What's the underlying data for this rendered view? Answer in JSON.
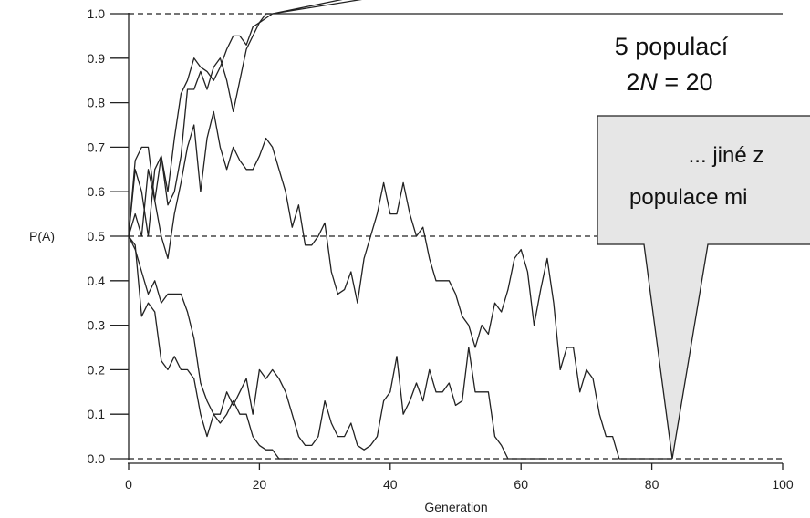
{
  "chart_data": {
    "type": "line",
    "xlabel": "Generation",
    "ylabel": "P(A)",
    "xlim": [
      0,
      100
    ],
    "ylim": [
      0,
      1
    ],
    "xticks": [
      "0",
      "20",
      "40",
      "60",
      "80",
      "100"
    ],
    "yticks": [
      "0.0",
      "0.1",
      "0.2",
      "0.3",
      "0.4",
      "0.5",
      "0.6",
      "0.7",
      "0.8",
      "0.9",
      "1.0"
    ],
    "reference_lines": [
      0.0,
      0.5,
      1.0
    ],
    "grid": false,
    "series": [
      {
        "x": [
          0,
          1,
          2,
          3,
          4,
          5,
          6,
          7,
          8,
          9,
          10,
          11,
          12,
          13,
          14,
          15,
          16,
          17,
          18,
          19,
          20,
          21,
          22,
          23,
          24,
          25,
          26,
          27,
          28,
          29,
          30,
          31,
          32,
          33,
          34,
          35,
          36,
          37,
          38,
          39,
          40,
          41,
          42,
          43,
          44,
          45,
          46,
          47,
          48,
          49,
          50,
          51,
          52,
          53,
          54,
          55,
          56,
          57,
          58,
          59,
          60,
          61,
          62,
          63,
          64,
          65,
          66,
          67,
          68,
          69,
          70,
          71,
          72,
          73,
          74,
          75,
          76,
          77,
          78,
          79,
          80,
          81,
          82,
          83
        ],
        "values": [
          0.5,
          0.67,
          0.7,
          0.7,
          0.58,
          0.5,
          0.45,
          0.55,
          0.62,
          0.7,
          0.75,
          0.6,
          0.72,
          0.78,
          0.7,
          0.65,
          0.7,
          0.67,
          0.65,
          0.65,
          0.68,
          0.72,
          0.7,
          0.65,
          0.6,
          0.52,
          0.57,
          0.48,
          0.48,
          0.5,
          0.53,
          0.42,
          0.37,
          0.38,
          0.42,
          0.35,
          0.45,
          0.5,
          0.55,
          0.62,
          0.55,
          0.55,
          0.62,
          0.55,
          0.5,
          0.52,
          0.45,
          0.4,
          0.4,
          0.4,
          0.37,
          0.32,
          0.3,
          0.25,
          0.3,
          0.28,
          0.35,
          0.33,
          0.38,
          0.45,
          0.47,
          0.42,
          0.3,
          0.38,
          0.45,
          0.35,
          0.2,
          0.25,
          0.25,
          0.15,
          0.2,
          0.18,
          0.1,
          0.05,
          0.05,
          0.0,
          0.0,
          0.0,
          0.0,
          0.0,
          0.0,
          0.0,
          0.0,
          0.0
        ]
      },
      {
        "x": [
          0,
          1,
          2,
          3,
          4,
          5,
          6,
          7,
          8,
          9,
          10,
          11,
          12,
          13,
          14,
          15,
          16,
          17,
          18,
          19,
          20,
          21,
          22,
          23,
          24,
          25,
          26,
          27,
          28,
          29,
          30,
          31,
          32,
          33,
          34,
          35,
          36,
          37,
          38,
          39,
          40,
          41,
          42,
          43,
          44,
          45,
          46,
          47,
          48,
          49,
          50,
          51,
          52,
          53,
          54,
          55,
          56,
          57,
          58,
          59,
          60,
          61,
          62,
          63,
          64
        ],
        "values": [
          0.5,
          0.48,
          0.32,
          0.35,
          0.33,
          0.22,
          0.2,
          0.23,
          0.2,
          0.2,
          0.18,
          0.1,
          0.05,
          0.1,
          0.1,
          0.15,
          0.12,
          0.15,
          0.18,
          0.1,
          0.2,
          0.18,
          0.2,
          0.18,
          0.15,
          0.1,
          0.05,
          0.03,
          0.03,
          0.05,
          0.13,
          0.08,
          0.05,
          0.05,
          0.08,
          0.03,
          0.02,
          0.03,
          0.05,
          0.13,
          0.15,
          0.23,
          0.1,
          0.13,
          0.17,
          0.13,
          0.2,
          0.15,
          0.15,
          0.17,
          0.12,
          0.13,
          0.25,
          0.15,
          0.15,
          0.15,
          0.05,
          0.03,
          0.0,
          0.0,
          0.0,
          0.0,
          0.0,
          0.0,
          0.0
        ]
      },
      {
        "x": [
          0,
          1,
          2,
          3,
          4,
          5,
          6,
          7,
          8,
          9,
          10,
          11,
          12,
          13,
          14,
          15,
          16,
          17,
          18,
          19,
          20,
          21,
          22,
          23,
          24,
          25
        ],
        "values": [
          0.5,
          0.47,
          0.42,
          0.37,
          0.4,
          0.35,
          0.37,
          0.37,
          0.37,
          0.33,
          0.27,
          0.17,
          0.13,
          0.1,
          0.08,
          0.1,
          0.13,
          0.1,
          0.1,
          0.05,
          0.03,
          0.02,
          0.02,
          0.0,
          0.0,
          0.0
        ]
      },
      {
        "x": [
          0,
          1,
          2,
          3,
          4,
          5,
          6,
          7,
          8,
          9,
          10,
          11,
          12,
          13,
          14,
          15,
          16,
          17,
          18,
          19,
          20,
          21,
          22
        ],
        "values": [
          0.5,
          0.65,
          0.6,
          0.5,
          0.65,
          0.68,
          0.57,
          0.6,
          0.68,
          0.83,
          0.83,
          0.87,
          0.83,
          0.88,
          0.9,
          0.85,
          0.78,
          0.85,
          0.92,
          0.95,
          0.98,
          1.0,
          1.0
        ]
      },
      {
        "x": [
          0,
          1,
          2,
          3,
          4,
          5,
          6,
          7,
          8,
          9,
          10,
          11,
          12,
          13,
          14,
          15,
          16,
          17,
          18,
          19,
          20,
          21,
          22
        ],
        "values": [
          0.5,
          0.55,
          0.5,
          0.65,
          0.58,
          0.68,
          0.6,
          0.72,
          0.82,
          0.85,
          0.9,
          0.88,
          0.87,
          0.85,
          0.88,
          0.92,
          0.95,
          0.95,
          0.93,
          0.97,
          0.98,
          0.99,
          1.0
        ]
      }
    ]
  },
  "annotations": {
    "populations_line1": "5 populací",
    "populations_line2_prefix": "2",
    "populations_line2_italic": "N",
    "populations_line2_suffix": " = 20",
    "callout_line1": "... jiné z",
    "callout_line2": "populace mi"
  },
  "colors": {
    "line": "#222222",
    "callout_fill": "#e6e6e6",
    "callout_stroke": "#222222"
  }
}
